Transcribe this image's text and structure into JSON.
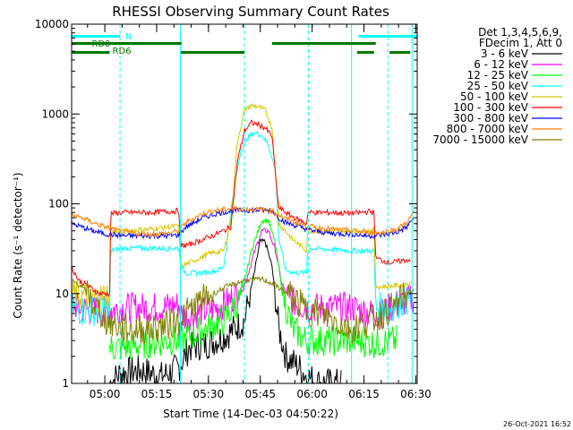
{
  "chart_data": {
    "type": "line",
    "title": "RHESSI Observing Summary Count Rates",
    "xlabel": "Start Time (14-Dec-03 04:50:22)",
    "ylabel": "Count Rate (s⁻¹ detector⁻¹)",
    "yscale": "log",
    "ylim": [
      1,
      10000
    ],
    "xlim_minutes": [
      0,
      100
    ],
    "x_ticks": [
      {
        "m": 9.6,
        "label": "05:00"
      },
      {
        "m": 24.6,
        "label": "05:15"
      },
      {
        "m": 39.6,
        "label": "05:30"
      },
      {
        "m": 54.6,
        "label": "05:45"
      },
      {
        "m": 69.6,
        "label": "06:00"
      },
      {
        "m": 84.6,
        "label": "06:15"
      },
      {
        "m": 99.6,
        "label": "06:30"
      }
    ],
    "y_ticks": [
      {
        "v": 1,
        "label": "1"
      },
      {
        "v": 10,
        "label": "10"
      },
      {
        "v": 100,
        "label": "100"
      },
      {
        "v": 1000,
        "label": "1000"
      },
      {
        "v": 10000,
        "label": "10000"
      }
    ],
    "legend_header": [
      "Det 1,3,4,5,6,9,",
      "FDecim 1, Att 0"
    ],
    "timestamp": "26-Oct-2021 16:52",
    "markers": {
      "N_label": "N",
      "RD0_label": "RD0",
      "RD6_label": "RD6",
      "N_intervals": [
        [
          0,
          14
        ],
        [
          83,
          100
        ]
      ],
      "RD0_intervals": [
        [
          0,
          31.8
        ],
        [
          31.8,
          31.8
        ],
        [
          58,
          88
        ]
      ],
      "RD6_intervals": [
        [
          0,
          11
        ],
        [
          31.6,
          50
        ],
        [
          82.6,
          87.5
        ],
        [
          92,
          98
        ]
      ],
      "solid_lines_m": [
        0,
        31.5,
        81,
        98.5
      ],
      "dashed_lines_m": [
        14,
        50,
        68.5,
        91.5
      ]
    },
    "series": [
      {
        "name": "3 - 6 keV",
        "color": "#000000",
        "points": [
          [
            11,
            1
          ],
          [
            14,
            1.3
          ],
          [
            20,
            1.4
          ],
          [
            26,
            1.2
          ],
          [
            31,
            1.5
          ],
          [
            34,
            2.5
          ],
          [
            40,
            2.8
          ],
          [
            45,
            3.5
          ],
          [
            50,
            5
          ],
          [
            53,
            18
          ],
          [
            54.5,
            38
          ],
          [
            56,
            38
          ],
          [
            58,
            20
          ],
          [
            60,
            4
          ],
          [
            62,
            2
          ],
          [
            66,
            1.5
          ],
          [
            68,
            1.2
          ],
          [
            72,
            1
          ],
          [
            78,
            1
          ]
        ]
      },
      {
        "name": "6 - 12 keV",
        "color": "#ff00ff",
        "points": [
          [
            0,
            8
          ],
          [
            2,
            7
          ],
          [
            5,
            6.5
          ],
          [
            8,
            6.5
          ],
          [
            11,
            6.5
          ],
          [
            15,
            7
          ],
          [
            25,
            7
          ],
          [
            31,
            7.5
          ],
          [
            32,
            5.5
          ],
          [
            36,
            6
          ],
          [
            42,
            7
          ],
          [
            47,
            9
          ],
          [
            50,
            12
          ],
          [
            53,
            30
          ],
          [
            55,
            50
          ],
          [
            57,
            50
          ],
          [
            59,
            30
          ],
          [
            61,
            12
          ],
          [
            64,
            8
          ],
          [
            68,
            7
          ],
          [
            75,
            7
          ],
          [
            81,
            7
          ],
          [
            84,
            6.5
          ],
          [
            87,
            6
          ],
          [
            90,
            6
          ],
          [
            92,
            7
          ],
          [
            96,
            8
          ],
          [
            99,
            9
          ]
        ]
      },
      {
        "name": "12 - 25 keV",
        "color": "#00ff00",
        "points": [
          [
            11,
            2.5
          ],
          [
            15,
            2.5
          ],
          [
            22,
            2.8
          ],
          [
            28,
            3
          ],
          [
            32,
            3
          ],
          [
            38,
            4
          ],
          [
            44,
            5
          ],
          [
            49,
            9
          ],
          [
            52,
            30
          ],
          [
            55,
            65
          ],
          [
            57,
            65
          ],
          [
            59,
            35
          ],
          [
            61,
            10
          ],
          [
            64,
            4
          ],
          [
            68,
            3
          ],
          [
            75,
            3
          ],
          [
            82,
            3
          ],
          [
            88,
            2.8
          ],
          [
            94,
            3
          ]
        ]
      },
      {
        "name": "25 - 50 keV",
        "color": "#00ffff",
        "points": [
          [
            0,
            7
          ],
          [
            3,
            6.5
          ],
          [
            8,
            6.5
          ],
          [
            11,
            6.5
          ],
          [
            11.3,
            30
          ],
          [
            15,
            32
          ],
          [
            25,
            32
          ],
          [
            31,
            32
          ],
          [
            31.6,
            20
          ],
          [
            33,
            17
          ],
          [
            38,
            17
          ],
          [
            42,
            18
          ],
          [
            44,
            20
          ],
          [
            47,
            150
          ],
          [
            49,
            400
          ],
          [
            51,
            550
          ],
          [
            53,
            620
          ],
          [
            55,
            580
          ],
          [
            57,
            450
          ],
          [
            59,
            230
          ],
          [
            60,
            40
          ],
          [
            62,
            18
          ],
          [
            65,
            17
          ],
          [
            68,
            17
          ],
          [
            68.3,
            32
          ],
          [
            75,
            31
          ],
          [
            81,
            30
          ],
          [
            86,
            30
          ],
          [
            87.6,
            30
          ],
          [
            87.9,
            7
          ],
          [
            92,
            7
          ],
          [
            98,
            9
          ]
        ]
      },
      {
        "name": "50 - 100 keV",
        "color": "#d8c800",
        "points": [
          [
            0,
            10
          ],
          [
            2,
            9.5
          ],
          [
            5,
            9
          ],
          [
            8,
            9
          ],
          [
            11,
            10
          ],
          [
            11.3,
            48
          ],
          [
            15,
            50
          ],
          [
            22,
            52
          ],
          [
            28,
            55
          ],
          [
            31,
            57
          ],
          [
            31.6,
            20
          ],
          [
            34,
            22
          ],
          [
            40,
            28
          ],
          [
            44,
            30
          ],
          [
            46,
            60
          ],
          [
            48,
            500
          ],
          [
            50,
            1100
          ],
          [
            52,
            1250
          ],
          [
            54,
            1200
          ],
          [
            56,
            1100
          ],
          [
            58,
            700
          ],
          [
            59.5,
            120
          ],
          [
            60,
            60
          ],
          [
            64,
            40
          ],
          [
            68,
            30
          ],
          [
            68.3,
            50
          ],
          [
            75,
            50
          ],
          [
            81,
            50
          ],
          [
            86,
            50
          ],
          [
            87.6,
            52
          ],
          [
            87.9,
            12
          ],
          [
            92,
            12
          ],
          [
            98,
            13
          ]
        ]
      },
      {
        "name": "100 - 300 keV",
        "color": "#ff0000",
        "points": [
          [
            0,
            20
          ],
          [
            2,
            14
          ],
          [
            5,
            12
          ],
          [
            8,
            10
          ],
          [
            11,
            10
          ],
          [
            11.3,
            78
          ],
          [
            15,
            80
          ],
          [
            22,
            80
          ],
          [
            28,
            82
          ],
          [
            31,
            84
          ],
          [
            31.6,
            34
          ],
          [
            34,
            35
          ],
          [
            40,
            43
          ],
          [
            44,
            50
          ],
          [
            46,
            55
          ],
          [
            48,
            300
          ],
          [
            50,
            650
          ],
          [
            52,
            800
          ],
          [
            54,
            760
          ],
          [
            56,
            700
          ],
          [
            58,
            560
          ],
          [
            59.5,
            130
          ],
          [
            60,
            90
          ],
          [
            63,
            75
          ],
          [
            68,
            60
          ],
          [
            68.3,
            80
          ],
          [
            75,
            80
          ],
          [
            81,
            78
          ],
          [
            86,
            82
          ],
          [
            87.6,
            80
          ],
          [
            87.9,
            25
          ],
          [
            92,
            22
          ],
          [
            98,
            24
          ]
        ]
      },
      {
        "name": "300 - 800 keV",
        "color": "#0000ff",
        "points": [
          [
            0,
            60
          ],
          [
            3,
            55
          ],
          [
            6,
            50
          ],
          [
            10,
            46
          ],
          [
            15,
            44
          ],
          [
            22,
            44
          ],
          [
            28,
            44
          ],
          [
            31,
            45
          ],
          [
            33,
            55
          ],
          [
            38,
            70
          ],
          [
            42,
            78
          ],
          [
            46,
            83
          ],
          [
            50,
            85
          ],
          [
            55,
            85
          ],
          [
            58,
            84
          ],
          [
            60,
            70
          ],
          [
            62,
            62
          ],
          [
            66,
            55
          ],
          [
            70,
            50
          ],
          [
            75,
            47
          ],
          [
            81,
            46
          ],
          [
            86,
            44
          ],
          [
            90,
            45
          ],
          [
            94,
            48
          ],
          [
            97,
            55
          ],
          [
            99,
            70
          ]
        ]
      },
      {
        "name": "800 - 7000 keV",
        "color": "#ff8000",
        "points": [
          [
            0,
            75
          ],
          [
            3,
            70
          ],
          [
            6,
            62
          ],
          [
            10,
            55
          ],
          [
            15,
            48
          ],
          [
            22,
            46
          ],
          [
            28,
            47
          ],
          [
            31,
            50
          ],
          [
            33,
            62
          ],
          [
            38,
            78
          ],
          [
            42,
            85
          ],
          [
            46,
            88
          ],
          [
            50,
            88
          ],
          [
            55,
            86
          ],
          [
            58,
            84
          ],
          [
            60,
            75
          ],
          [
            62,
            68
          ],
          [
            66,
            60
          ],
          [
            70,
            55
          ],
          [
            75,
            52
          ],
          [
            81,
            50
          ],
          [
            86,
            48
          ],
          [
            90,
            48
          ],
          [
            94,
            52
          ],
          [
            97,
            62
          ],
          [
            99,
            80
          ]
        ]
      },
      {
        "name": "7000 - 15000 keV",
        "color": "#808000",
        "points": [
          [
            0,
            14
          ],
          [
            3,
            12
          ],
          [
            6,
            8
          ],
          [
            10,
            5
          ],
          [
            15,
            4
          ],
          [
            22,
            4
          ],
          [
            28,
            4.5
          ],
          [
            31,
            5
          ],
          [
            33,
            6
          ],
          [
            37,
            8
          ],
          [
            41,
            10
          ],
          [
            45,
            12
          ],
          [
            50,
            14
          ],
          [
            55,
            14.5
          ],
          [
            58,
            13
          ],
          [
            61,
            11
          ],
          [
            64,
            9
          ],
          [
            68,
            6.5
          ],
          [
            72,
            6
          ],
          [
            76,
            5
          ],
          [
            81,
            4
          ],
          [
            86,
            5
          ],
          [
            90,
            6
          ],
          [
            94,
            7.5
          ],
          [
            97,
            10
          ],
          [
            99,
            11
          ]
        ]
      }
    ]
  }
}
